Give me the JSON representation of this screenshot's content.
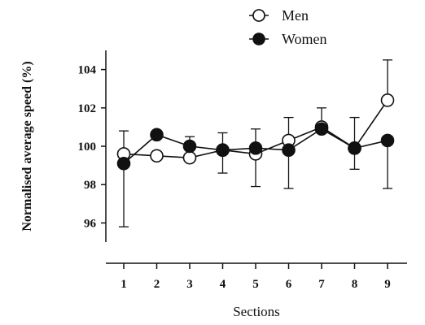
{
  "chart_data": {
    "type": "line",
    "xlabel": "Sections",
    "ylabel": "Normalised average speed (%)",
    "categories": [
      "1",
      "2",
      "3",
      "4",
      "5",
      "6",
      "7",
      "8",
      "9"
    ],
    "ylim": [
      95,
      105
    ],
    "yticks": [
      "96",
      "98",
      "100",
      "102",
      "104"
    ],
    "grid": false,
    "legend_position": "top-center",
    "series": [
      {
        "name": "Men",
        "marker": "open-circle",
        "color": "#111111",
        "values": [
          99.6,
          99.5,
          99.4,
          99.8,
          99.6,
          100.3,
          101.0,
          99.9,
          102.4
        ],
        "err_upper": [
          null,
          null,
          null,
          null,
          null,
          null,
          102.0,
          null,
          104.5
        ],
        "err_lower": [
          null,
          null,
          null,
          null,
          null,
          null,
          null,
          null,
          null
        ]
      },
      {
        "name": "Women",
        "marker": "filled-circle",
        "color": "#111111",
        "values": [
          99.1,
          100.6,
          100.0,
          99.8,
          99.9,
          99.8,
          100.9,
          99.9,
          100.3
        ],
        "err_upper": [
          100.8,
          null,
          100.5,
          100.7,
          100.9,
          101.5,
          null,
          101.5,
          null
        ],
        "err_lower": [
          95.8,
          null,
          null,
          98.6,
          97.9,
          97.8,
          null,
          98.8,
          97.8
        ]
      }
    ]
  }
}
